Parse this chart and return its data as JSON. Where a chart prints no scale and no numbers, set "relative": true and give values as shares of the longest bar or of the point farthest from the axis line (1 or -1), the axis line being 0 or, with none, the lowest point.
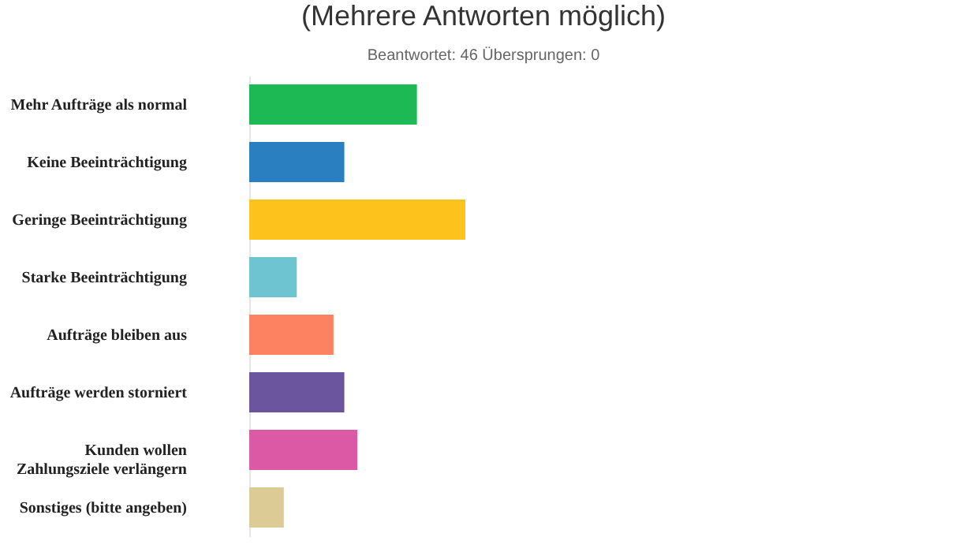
{
  "chart_data": {
    "type": "bar",
    "orientation": "horizontal",
    "relative": true,
    "title": "(Mehrere Antworten möglich)",
    "subtitle": "Beantwortet: 46 Übersprungen: 0",
    "categories": [
      "Mehr Aufträge als normal",
      "Keine Beeinträchtigung",
      "Geringe Beeinträchtigung",
      "Starke Beeinträchtigung",
      "Aufträge bleiben aus",
      "Aufträge werden storniert",
      "Kunden wollen\nZahlungsziele verlängern",
      "Sonstiges (bitte angeben)"
    ],
    "values": [
      0.776,
      0.44,
      1,
      0.22,
      0.39,
      0.44,
      0.5,
      0.16
    ],
    "colors": [
      "#1db954",
      "#2a7fc1",
      "#fdc21b",
      "#6ec4d1",
      "#fd8262",
      "#6a559e",
      "#dc5aa5",
      "#dccb94"
    ],
    "grid": false
  }
}
